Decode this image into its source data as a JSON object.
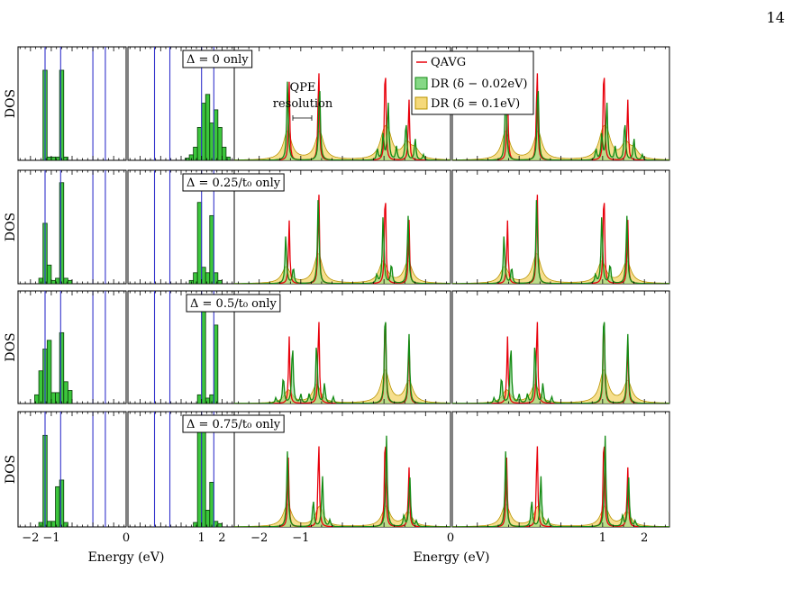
{
  "page_number": "14",
  "colors": {
    "hist_fill": "#3cc63c",
    "hist_edge": "#0b3b0b",
    "vline": "#3333cc",
    "qavg": "#e8000b",
    "dr_small_fill": "#86d886",
    "dr_small_line": "#138a13",
    "dr_large_fill": "#f5d97a",
    "dr_large_line": "#b99400"
  },
  "chart_data": {
    "type": "histogram+line",
    "ylabel": "DOS",
    "xlabel_left": "Energy (eV)",
    "xlabel_right": "Energy (eV)",
    "x_ticks_left": [
      "−2",
      "−1",
      "0",
      "1",
      "2"
    ],
    "x_ticks_right": [
      "−2",
      "−1",
      "0",
      "1",
      "2"
    ],
    "xlim": [
      -2.6,
      2.6
    ],
    "reference_energies": [
      -1.3,
      -0.55,
      1.0,
      1.6
    ],
    "legend": {
      "qavg": "QAVG",
      "dr_small": "DR (δ − 0.02eV)",
      "dr_large": "DR (δ = 0.1eV)"
    },
    "annotation_resolution": [
      "QPE",
      "resolution"
    ],
    "panels": [
      {
        "label": "Δ = 0 only",
        "hist_left": {
          "centers": [
            -1.3,
            -1.1,
            -0.9,
            -0.7,
            -0.5,
            -0.3
          ],
          "heights": [
            0.82,
            0.03,
            0.03,
            0.03,
            0.82,
            0.03
          ]
        },
        "hist_right": {
          "centers": [
            0.3,
            0.5,
            0.7,
            0.9,
            1.1,
            1.3,
            1.5,
            1.7,
            1.9,
            2.1,
            2.3
          ],
          "heights": [
            0.02,
            0.05,
            0.12,
            0.3,
            0.52,
            0.6,
            0.34,
            0.46,
            0.3,
            0.12,
            0.03
          ]
        },
        "qavg_peaks": [
          [
            -1.28,
            0.72
          ],
          [
            -0.57,
            0.9
          ],
          [
            1.03,
            0.98
          ],
          [
            1.6,
            0.57
          ]
        ],
        "dr_small_peaks": [
          [
            -1.32,
            0.72
          ],
          [
            -0.55,
            0.72
          ],
          [
            0.84,
            0.1
          ],
          [
            0.98,
            0.24
          ],
          [
            1.1,
            0.54
          ],
          [
            1.3,
            0.12
          ],
          [
            1.53,
            0.36
          ],
          [
            1.75,
            0.2
          ],
          [
            1.95,
            0.05
          ]
        ],
        "dr_large_peaks": [
          [
            -1.32,
            0.26
          ],
          [
            -0.55,
            0.26
          ],
          [
            1.0,
            0.18
          ],
          [
            1.1,
            0.18
          ],
          [
            1.55,
            0.14
          ],
          [
            1.75,
            0.08
          ]
        ]
      },
      {
        "label": "Δ = 0.25/t₀ only",
        "hist_left": {
          "centers": [
            -1.5,
            -1.3,
            -1.1,
            -0.9,
            -0.7,
            -0.5,
            -0.3,
            -0.1
          ],
          "heights": [
            0.05,
            0.55,
            0.17,
            0.03,
            0.05,
            0.92,
            0.05,
            0.03
          ]
        },
        "hist_right": {
          "centers": [
            0.5,
            0.7,
            0.9,
            1.1,
            1.3,
            1.5,
            1.7,
            1.9
          ],
          "heights": [
            0.03,
            0.1,
            0.74,
            0.15,
            0.1,
            0.62,
            0.1,
            0.03
          ]
        },
        "qavg_peaks": [
          [
            -1.28,
            0.58
          ],
          [
            -0.57,
            0.92
          ],
          [
            1.03,
            0.96
          ],
          [
            1.6,
            0.6
          ]
        ],
        "dr_small_peaks": [
          [
            -1.36,
            0.45
          ],
          [
            -1.18,
            0.15
          ],
          [
            -0.58,
            0.8
          ],
          [
            0.98,
            0.63
          ],
          [
            1.18,
            0.18
          ],
          [
            1.58,
            0.62
          ],
          [
            0.83,
            0.08
          ]
        ],
        "dr_large_peaks": [
          [
            -1.35,
            0.15
          ],
          [
            -0.58,
            0.27
          ],
          [
            0.98,
            0.2
          ],
          [
            1.58,
            0.2
          ]
        ]
      },
      {
        "label": "Δ = 0.5/t₀ only",
        "hist_left": {
          "centers": [
            -1.7,
            -1.5,
            -1.3,
            -1.1,
            -0.9,
            -0.7,
            -0.5,
            -0.3,
            -0.1
          ],
          "heights": [
            0.08,
            0.3,
            0.5,
            0.58,
            0.1,
            0.1,
            0.65,
            0.2,
            0.12
          ]
        },
        "hist_right": {
          "centers": [
            0.9,
            1.1,
            1.3,
            1.5,
            1.7
          ],
          "heights": [
            0.08,
            0.96,
            0.05,
            0.08,
            0.72
          ]
        },
        "qavg_peaks": [
          [
            -1.28,
            0.62
          ],
          [
            -0.57,
            0.85
          ],
          [
            1.03,
            0.96
          ],
          [
            1.6,
            0.6
          ]
        ],
        "dr_small_peaks": [
          [
            -1.42,
            0.25
          ],
          [
            -1.2,
            0.55
          ],
          [
            -1.0,
            0.08
          ],
          [
            -0.8,
            0.08
          ],
          [
            -0.62,
            0.58
          ],
          [
            -0.43,
            0.18
          ],
          [
            -0.22,
            0.06
          ],
          [
            -1.6,
            0.05
          ],
          [
            1.03,
            0.9
          ],
          [
            1.6,
            0.65
          ]
        ],
        "dr_large_peaks": [
          [
            -1.3,
            0.12
          ],
          [
            -0.62,
            0.17
          ],
          [
            1.03,
            0.3
          ],
          [
            1.6,
            0.2
          ]
        ]
      },
      {
        "label": "Δ = 0.75/t₀ only",
        "hist_left": {
          "centers": [
            -1.5,
            -1.3,
            -1.1,
            -0.9,
            -0.7,
            -0.5,
            -0.3
          ],
          "heights": [
            0.04,
            0.82,
            0.05,
            0.05,
            0.36,
            0.42,
            0.04
          ]
        },
        "hist_right": {
          "centers": [
            0.7,
            0.9,
            1.1,
            1.3,
            1.5,
            1.7,
            1.9
          ],
          "heights": [
            0.04,
            0.88,
            0.99,
            0.15,
            0.4,
            0.05,
            0.03
          ]
        },
        "qavg_peaks": [
          [
            -1.3,
            0.62
          ],
          [
            -0.57,
            0.82
          ],
          [
            1.03,
            0.94
          ],
          [
            1.6,
            0.55
          ]
        ],
        "dr_small_peaks": [
          [
            -1.32,
            0.68
          ],
          [
            -0.7,
            0.24
          ],
          [
            -0.48,
            0.46
          ],
          [
            -0.3,
            0.06
          ],
          [
            1.06,
            0.82
          ],
          [
            1.48,
            0.1
          ],
          [
            1.62,
            0.46
          ],
          [
            1.78,
            0.05
          ]
        ],
        "dr_large_peaks": [
          [
            -1.32,
            0.2
          ],
          [
            -0.55,
            0.18
          ],
          [
            1.05,
            0.18
          ],
          [
            1.58,
            0.13
          ]
        ]
      }
    ]
  }
}
